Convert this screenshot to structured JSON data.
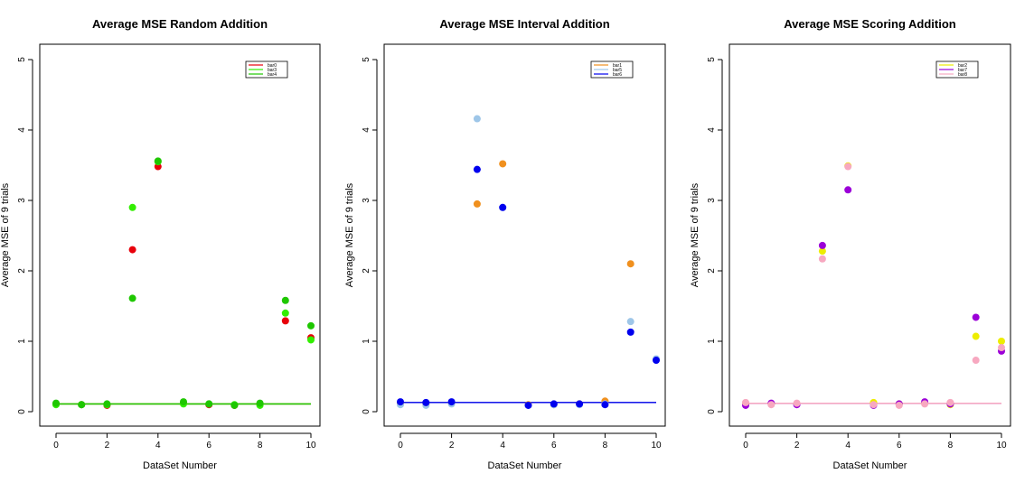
{
  "chart_data": [
    {
      "type": "scatter",
      "title": "Average MSE Random Addition",
      "xlabel": "DataSet Number",
      "ylabel": "Average MSE of 9 trials",
      "xlim": [
        0,
        10
      ],
      "ylim": [
        0,
        5
      ],
      "xticks": [
        "0",
        "2",
        "4",
        "6",
        "8",
        "10"
      ],
      "yticks": [
        "0",
        "1",
        "2",
        "3",
        "4",
        "5"
      ],
      "legend_position": "top-right",
      "grid": false,
      "baseline": 0.11,
      "series": [
        {
          "name": "bar0",
          "color": "#e8000b",
          "x": [
            0,
            1,
            2,
            3,
            4,
            5,
            6,
            7,
            8,
            9,
            10
          ],
          "y": [
            0.11,
            0.1,
            0.09,
            2.3,
            3.48,
            0.12,
            0.1,
            0.09,
            0.11,
            1.29,
            1.05
          ]
        },
        {
          "name": "bar3",
          "color": "#33ee00",
          "x": [
            0,
            1,
            2,
            3,
            4,
            5,
            6,
            7,
            8,
            9,
            10
          ],
          "y": [
            0.1,
            0.1,
            0.1,
            2.9,
            3.55,
            0.11,
            0.11,
            0.1,
            0.09,
            1.4,
            1.02
          ]
        },
        {
          "name": "bar4",
          "color": "#1ec700",
          "x": [
            0,
            1,
            2,
            3,
            4,
            5,
            6,
            7,
            8,
            9,
            10
          ],
          "y": [
            0.12,
            0.1,
            0.11,
            1.61,
            3.56,
            0.14,
            0.11,
            0.09,
            0.12,
            1.58,
            1.22
          ]
        }
      ]
    },
    {
      "type": "scatter",
      "title": "Average MSE Interval Addition",
      "xlabel": "DataSet Number",
      "ylabel": "Average MSE of 9 trials",
      "xlim": [
        0,
        10
      ],
      "ylim": [
        0,
        5
      ],
      "xticks": [
        "0",
        "2",
        "4",
        "6",
        "8",
        "10"
      ],
      "yticks": [
        "0",
        "1",
        "2",
        "3",
        "4",
        "5"
      ],
      "legend_position": "top-right",
      "grid": false,
      "baseline": 0.13,
      "series": [
        {
          "name": "bar1",
          "color": "#f0901e",
          "x": [
            0,
            1,
            2,
            3,
            4,
            5,
            6,
            7,
            8,
            9,
            10
          ],
          "y": [
            0.12,
            0.11,
            0.12,
            2.95,
            3.52,
            0.1,
            0.1,
            0.11,
            0.15,
            2.1,
            0.74
          ]
        },
        {
          "name": "bar5",
          "color": "#9ec6e8",
          "x": [
            0,
            1,
            2,
            3,
            4,
            5,
            6,
            7,
            8,
            9,
            10
          ],
          "y": [
            0.1,
            0.09,
            0.11,
            4.16,
            2.9,
            0.09,
            0.1,
            0.1,
            0.11,
            1.28,
            0.75
          ]
        },
        {
          "name": "bar6",
          "color": "#0000ee",
          "x": [
            0,
            1,
            2,
            3,
            4,
            5,
            6,
            7,
            8,
            9,
            10
          ],
          "y": [
            0.14,
            0.13,
            0.14,
            3.44,
            2.9,
            0.09,
            0.11,
            0.11,
            0.1,
            1.13,
            0.73
          ]
        }
      ]
    },
    {
      "type": "scatter",
      "title": "Average MSE Scoring Addition",
      "xlabel": "DataSet Number",
      "ylabel": "Average MSE of 9 trials",
      "xlim": [
        0,
        10
      ],
      "ylim": [
        0,
        5
      ],
      "xticks": [
        "0",
        "2",
        "4",
        "6",
        "8",
        "10"
      ],
      "yticks": [
        "0",
        "1",
        "2",
        "3",
        "4",
        "5"
      ],
      "legend_position": "top-right",
      "grid": false,
      "baseline": 0.12,
      "series": [
        {
          "name": "bar2",
          "color": "#eded00",
          "x": [
            0,
            1,
            2,
            3,
            4,
            5,
            6,
            7,
            8,
            9,
            10
          ],
          "y": [
            0.11,
            0.11,
            0.11,
            2.28,
            3.49,
            0.13,
            0.11,
            0.12,
            0.1,
            1.07,
            1.0
          ]
        },
        {
          "name": "bar7",
          "color": "#9b00d8",
          "x": [
            0,
            1,
            2,
            3,
            4,
            5,
            6,
            7,
            8,
            9,
            10
          ],
          "y": [
            0.09,
            0.12,
            0.1,
            2.36,
            3.15,
            0.09,
            0.11,
            0.14,
            0.11,
            1.34,
            0.86
          ]
        },
        {
          "name": "bar8",
          "color": "#f7a8c0",
          "x": [
            0,
            1,
            2,
            3,
            4,
            5,
            6,
            7,
            8,
            9,
            10
          ],
          "y": [
            0.13,
            0.1,
            0.12,
            2.17,
            3.48,
            0.1,
            0.09,
            0.11,
            0.13,
            0.73,
            0.91
          ]
        }
      ]
    }
  ]
}
